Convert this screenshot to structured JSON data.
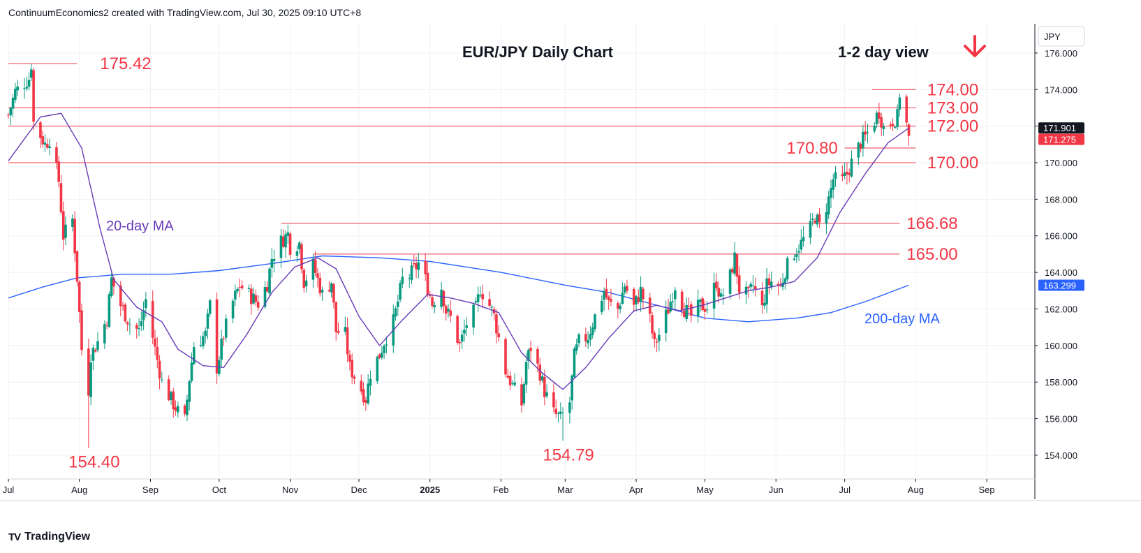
{
  "header": {
    "text": "ContinuumEconomics2 created with TradingView.com, Jul 30, 2025 09:10 UTC+8"
  },
  "footer": {
    "brand": "TradingView",
    "logo_mark": "TV"
  },
  "colors": {
    "bull": "#089981",
    "bear": "#f23645",
    "ma20": "#673ab7",
    "ma200": "#2962ff",
    "levels": "#f23645",
    "grid": "#eef1f5"
  },
  "chart_data": {
    "type": "candlestick",
    "title": "EUR/JPY Daily Chart",
    "subtitle": "1-2 day view",
    "bias_arrow": "down",
    "currency": "JPY",
    "ylim": [
      152.7,
      177.6
    ],
    "y_ticks": [
      "176.000",
      "174.000",
      "172.000",
      "170.000",
      "168.000",
      "166.000",
      "164.000",
      "162.000",
      "160.000",
      "158.000",
      "156.000",
      "154.000"
    ],
    "y_tick_values": [
      176,
      174,
      172,
      170,
      168,
      166,
      164,
      162,
      160,
      158,
      156,
      154
    ],
    "x_range": [
      "2024-07-01",
      "2025-09-22"
    ],
    "x_ticks": [
      {
        "label": "Jul",
        "date": "2024-07-01",
        "bold": false
      },
      {
        "label": "Aug",
        "date": "2024-08-01",
        "bold": false
      },
      {
        "label": "Sep",
        "date": "2024-09-01",
        "bold": false
      },
      {
        "label": "Oct",
        "date": "2024-10-01",
        "bold": false
      },
      {
        "label": "Nov",
        "date": "2024-11-01",
        "bold": false
      },
      {
        "label": "Dec",
        "date": "2024-12-01",
        "bold": false
      },
      {
        "label": "2025",
        "date": "2025-01-01",
        "bold": true
      },
      {
        "label": "Feb",
        "date": "2025-02-01",
        "bold": false
      },
      {
        "label": "Mar",
        "date": "2025-03-01",
        "bold": false
      },
      {
        "label": "Apr",
        "date": "2025-04-01",
        "bold": false
      },
      {
        "label": "May",
        "date": "2025-05-01",
        "bold": false
      },
      {
        "label": "Jun",
        "date": "2025-06-01",
        "bold": false
      },
      {
        "label": "Jul",
        "date": "2025-07-01",
        "bold": false
      },
      {
        "label": "Aug",
        "date": "2025-08-01",
        "bold": false
      },
      {
        "label": "Sep",
        "date": "2025-09-01",
        "bold": false
      }
    ],
    "close_path": [
      [
        "2024-07-01",
        172.6
      ],
      [
        "2024-07-04",
        173.9
      ],
      [
        "2024-07-10",
        174.6
      ],
      [
        "2024-07-11",
        175.4
      ],
      [
        "2024-07-12",
        172.2
      ],
      [
        "2024-07-17",
        171.0
      ],
      [
        "2024-07-19",
        171.3
      ],
      [
        "2024-07-23",
        169.0
      ],
      [
        "2024-07-25",
        166.0
      ],
      [
        "2024-07-29",
        166.9
      ],
      [
        "2024-07-31",
        163.7
      ],
      [
        "2024-08-02",
        159.8
      ],
      [
        "2024-08-05",
        157.6
      ],
      [
        "2024-08-06",
        159.5
      ],
      [
        "2024-08-09",
        160.2
      ],
      [
        "2024-08-13",
        161.5
      ],
      [
        "2024-08-15",
        163.6
      ],
      [
        "2024-08-19",
        162.2
      ],
      [
        "2024-08-23",
        161.2
      ],
      [
        "2024-08-27",
        160.8
      ],
      [
        "2024-08-30",
        162.5
      ],
      [
        "2024-09-03",
        159.8
      ],
      [
        "2024-09-06",
        158.0
      ],
      [
        "2024-09-11",
        156.8
      ],
      [
        "2024-09-13",
        156.4
      ],
      [
        "2024-09-16",
        155.9
      ],
      [
        "2024-09-18",
        158.2
      ],
      [
        "2024-09-20",
        160.0
      ],
      [
        "2024-09-25",
        160.6
      ],
      [
        "2024-09-27",
        162.2
      ],
      [
        "2024-09-30",
        158.8
      ],
      [
        "2024-10-03",
        160.6
      ],
      [
        "2024-10-07",
        162.4
      ],
      [
        "2024-10-10",
        163.3
      ],
      [
        "2024-10-14",
        162.8
      ],
      [
        "2024-10-18",
        162.3
      ],
      [
        "2024-10-22",
        163.4
      ],
      [
        "2024-10-24",
        164.8
      ],
      [
        "2024-10-28",
        165.7
      ],
      [
        "2024-10-31",
        166.1
      ],
      [
        "2024-11-01",
        165.4
      ],
      [
        "2024-11-05",
        165.6
      ],
      [
        "2024-11-07",
        163.5
      ],
      [
        "2024-11-11",
        164.4
      ],
      [
        "2024-11-15",
        162.8
      ],
      [
        "2024-11-19",
        163.5
      ],
      [
        "2024-11-21",
        160.8
      ],
      [
        "2024-11-25",
        160.6
      ],
      [
        "2024-11-27",
        158.8
      ],
      [
        "2024-12-02",
        157.6
      ],
      [
        "2024-12-04",
        157.1
      ],
      [
        "2024-12-06",
        158.5
      ],
      [
        "2024-12-10",
        159.5
      ],
      [
        "2024-12-12",
        160.2
      ],
      [
        "2024-12-16",
        161.3
      ],
      [
        "2024-12-18",
        162.4
      ],
      [
        "2024-12-20",
        163.6
      ],
      [
        "2024-12-23",
        163.8
      ],
      [
        "2024-12-27",
        164.5
      ],
      [
        "2024-12-30",
        163.6
      ],
      [
        "2025-01-02",
        162.3
      ],
      [
        "2025-01-06",
        163.2
      ],
      [
        "2025-01-08",
        161.9
      ],
      [
        "2025-01-10",
        161.5
      ],
      [
        "2025-01-14",
        160.0
      ],
      [
        "2025-01-17",
        161.2
      ],
      [
        "2025-01-21",
        162.0
      ],
      [
        "2025-01-23",
        163.1
      ],
      [
        "2025-01-27",
        162.2
      ],
      [
        "2025-01-29",
        161.6
      ],
      [
        "2025-02-03",
        158.6
      ],
      [
        "2025-02-06",
        157.8
      ],
      [
        "2025-02-10",
        156.8
      ],
      [
        "2025-02-12",
        159.1
      ],
      [
        "2025-02-14",
        159.9
      ],
      [
        "2025-02-18",
        158.5
      ],
      [
        "2025-02-20",
        157.5
      ],
      [
        "2025-02-24",
        156.3
      ],
      [
        "2025-02-27",
        156.0
      ],
      [
        "2025-03-03",
        156.9
      ],
      [
        "2025-03-05",
        159.4
      ],
      [
        "2025-03-07",
        160.2
      ],
      [
        "2025-03-11",
        160.5
      ],
      [
        "2025-03-14",
        161.6
      ],
      [
        "2025-03-18",
        163.0
      ],
      [
        "2025-03-20",
        162.3
      ],
      [
        "2025-03-24",
        162.0
      ],
      [
        "2025-03-27",
        163.3
      ],
      [
        "2025-03-31",
        162.1
      ],
      [
        "2025-04-03",
        163.0
      ],
      [
        "2025-04-07",
        161.4
      ],
      [
        "2025-04-09",
        160.0
      ],
      [
        "2025-04-11",
        160.6
      ],
      [
        "2025-04-15",
        162.0
      ],
      [
        "2025-04-18",
        163.3
      ],
      [
        "2025-04-22",
        162.0
      ],
      [
        "2025-04-25",
        161.6
      ],
      [
        "2025-04-29",
        162.2
      ],
      [
        "2025-05-02",
        162.1
      ],
      [
        "2025-05-06",
        163.5
      ],
      [
        "2025-05-08",
        162.5
      ],
      [
        "2025-05-12",
        163.8
      ],
      [
        "2025-05-14",
        164.8
      ],
      [
        "2025-05-16",
        163.1
      ],
      [
        "2025-05-20",
        162.7
      ],
      [
        "2025-05-22",
        163.3
      ],
      [
        "2025-05-26",
        162.0
      ],
      [
        "2025-05-28",
        163.3
      ],
      [
        "2025-05-30",
        163.5
      ],
      [
        "2025-06-03",
        163.2
      ],
      [
        "2025-06-05",
        164.1
      ],
      [
        "2025-06-09",
        165.1
      ],
      [
        "2025-06-12",
        165.6
      ],
      [
        "2025-06-16",
        166.4
      ],
      [
        "2025-06-18",
        167.1
      ],
      [
        "2025-06-20",
        166.5
      ],
      [
        "2025-06-24",
        168.0
      ],
      [
        "2025-06-26",
        169.1
      ],
      [
        "2025-06-30",
        169.0
      ],
      [
        "2025-07-02",
        169.4
      ],
      [
        "2025-07-04",
        170.0
      ],
      [
        "2025-07-08",
        171.1
      ],
      [
        "2025-07-10",
        171.4
      ],
      [
        "2025-07-14",
        172.3
      ],
      [
        "2025-07-16",
        172.8
      ],
      [
        "2025-07-18",
        171.9
      ],
      [
        "2025-07-22",
        172.3
      ],
      [
        "2025-07-24",
        172.5
      ],
      [
        "2025-07-25",
        173.8
      ],
      [
        "2025-07-28",
        172.1
      ],
      [
        "2025-07-29",
        171.275
      ]
    ],
    "ma20_path": [
      [
        "2024-07-01",
        170.1
      ],
      [
        "2024-07-15",
        172.5
      ],
      [
        "2024-07-24",
        172.7
      ],
      [
        "2024-08-02",
        170.8
      ],
      [
        "2024-08-10",
        166.4
      ],
      [
        "2024-08-16",
        163.6
      ],
      [
        "2024-08-26",
        162.1
      ],
      [
        "2024-09-06",
        161.3
      ],
      [
        "2024-09-13",
        159.8
      ],
      [
        "2024-09-24",
        158.9
      ],
      [
        "2024-10-03",
        158.8
      ],
      [
        "2024-10-13",
        160.6
      ],
      [
        "2024-10-24",
        162.9
      ],
      [
        "2024-11-03",
        164.3
      ],
      [
        "2024-11-13",
        164.8
      ],
      [
        "2024-11-21",
        164.2
      ],
      [
        "2024-12-01",
        161.6
      ],
      [
        "2024-12-10",
        160.0
      ],
      [
        "2024-12-20",
        161.4
      ],
      [
        "2024-12-31",
        162.8
      ],
      [
        "2025-01-10",
        162.6
      ],
      [
        "2025-01-20",
        162.3
      ],
      [
        "2025-01-31",
        161.8
      ],
      [
        "2025-02-10",
        159.6
      ],
      [
        "2025-02-19",
        158.5
      ],
      [
        "2025-02-28",
        157.6
      ],
      [
        "2025-03-10",
        158.8
      ],
      [
        "2025-03-20",
        160.4
      ],
      [
        "2025-03-31",
        161.9
      ],
      [
        "2025-04-10",
        162.2
      ],
      [
        "2025-04-20",
        161.9
      ],
      [
        "2025-04-30",
        162.2
      ],
      [
        "2025-05-10",
        162.6
      ],
      [
        "2025-05-20",
        163.0
      ],
      [
        "2025-05-30",
        163.2
      ],
      [
        "2025-06-09",
        163.5
      ],
      [
        "2025-06-19",
        164.8
      ],
      [
        "2025-06-29",
        167.3
      ],
      [
        "2025-07-10",
        169.4
      ],
      [
        "2025-07-20",
        171.1
      ],
      [
        "2025-07-29",
        171.9
      ]
    ],
    "ma200_path": [
      [
        "2024-07-01",
        162.6
      ],
      [
        "2024-07-16",
        163.2
      ],
      [
        "2024-07-31",
        163.7
      ],
      [
        "2024-08-20",
        163.9
      ],
      [
        "2024-09-10",
        163.9
      ],
      [
        "2024-10-01",
        164.1
      ],
      [
        "2024-10-25",
        164.5
      ],
      [
        "2024-11-15",
        164.9
      ],
      [
        "2024-12-10",
        164.8
      ],
      [
        "2025-01-01",
        164.6
      ],
      [
        "2025-02-01",
        164.0
      ],
      [
        "2025-03-01",
        163.3
      ],
      [
        "2025-03-20",
        162.9
      ],
      [
        "2025-04-10",
        162.2
      ],
      [
        "2025-05-01",
        161.5
      ],
      [
        "2025-05-20",
        161.3
      ],
      [
        "2025-06-10",
        161.5
      ],
      [
        "2025-06-25",
        161.8
      ],
      [
        "2025-07-10",
        162.4
      ],
      [
        "2025-07-29",
        163.3
      ]
    ],
    "levels": [
      {
        "label": "175.42",
        "value": 175.42,
        "from": "2024-07-01",
        "to": "2024-07-31",
        "label_at": "2024-08-10",
        "label_side": "right"
      },
      {
        "label": "174.00",
        "value": 174.0,
        "from": "2025-07-13",
        "to": "2025-08-01",
        "label_at": "2025-08-06",
        "label_side": "right"
      },
      {
        "label": "173.00",
        "value": 173.0,
        "from": "2024-07-01",
        "to": "2025-08-01",
        "label_at": "2025-08-06",
        "label_side": "right"
      },
      {
        "label": "172.00",
        "value": 172.0,
        "from": "2024-07-01",
        "to": "2025-08-01",
        "label_at": "2025-08-06",
        "label_side": "right"
      },
      {
        "label": "170.80",
        "value": 170.8,
        "from": "2025-07-01",
        "to": "2025-08-01",
        "label_at": "2025-06-28",
        "label_side": "left"
      },
      {
        "label": "170.00",
        "value": 170.0,
        "from": "2024-07-01",
        "to": "2025-08-01",
        "label_at": "2025-08-06",
        "label_side": "right"
      },
      {
        "label": "166.68",
        "value": 166.68,
        "from": "2024-10-28",
        "to": "2025-07-25",
        "label_at": "2025-07-28",
        "label_side": "right"
      },
      {
        "label": "165.00",
        "value": 165.0,
        "from": "2024-11-11",
        "to": "2025-07-25",
        "label_at": "2025-07-28",
        "label_side": "right"
      }
    ],
    "annotations": [
      {
        "label": "154.40",
        "value": 154.4,
        "date": "2024-08-05"
      },
      {
        "label": "154.79",
        "value": 154.79,
        "date": "2025-02-28"
      }
    ],
    "ma_labels": [
      {
        "label": "20-day MA",
        "color": "#673ab7"
      },
      {
        "label": "200-day MA",
        "color": "#2962ff"
      }
    ],
    "price_tags": [
      {
        "label": "171.901",
        "value": 171.901,
        "color": "#131722"
      },
      {
        "label": "171.275",
        "value": 171.275,
        "color": "#f23645"
      },
      {
        "label": "163.299",
        "value": 163.299,
        "color": "#2962ff"
      }
    ]
  }
}
